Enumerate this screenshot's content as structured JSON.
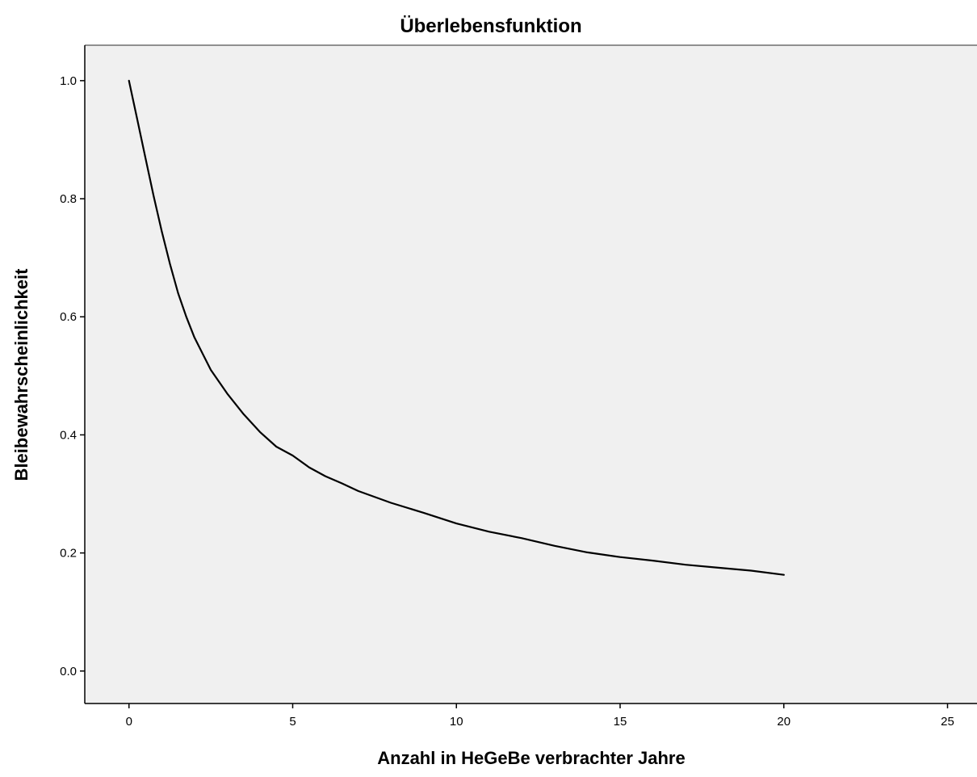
{
  "chart_data": {
    "type": "line",
    "title": "Überlebensfunktion",
    "xlabel": "Anzahl in HeGeBe verbrachter Jahre",
    "ylabel": "Bleibewahrscheinlichkeit",
    "xlim": [
      -1.35,
      25.9
    ],
    "ylim": [
      -0.055,
      1.06
    ],
    "xticks": [
      0,
      5,
      10,
      15,
      20,
      25
    ],
    "yticks": [
      0.0,
      0.2,
      0.4,
      0.6,
      0.8,
      1.0
    ],
    "xtick_labels": [
      "0",
      "5",
      "10",
      "15",
      "20",
      "25"
    ],
    "ytick_labels": [
      "0.0",
      "0.2",
      "0.4",
      "0.6",
      "0.8",
      "1.0"
    ],
    "grid": false,
    "colors": {
      "plot_background": "#f0f0f0",
      "line": "#000000"
    },
    "series": [
      {
        "x": [
          0,
          0.25,
          0.5,
          0.75,
          1,
          1.25,
          1.5,
          1.75,
          2,
          2.5,
          3,
          3.5,
          4,
          4.5,
          5,
          5.5,
          6,
          6.5,
          7,
          8,
          9,
          10,
          11,
          12,
          13,
          14,
          15,
          16,
          17,
          18,
          19,
          20
        ],
        "y": [
          1.0,
          0.935,
          0.87,
          0.805,
          0.745,
          0.69,
          0.64,
          0.6,
          0.565,
          0.51,
          0.47,
          0.435,
          0.405,
          0.38,
          0.365,
          0.345,
          0.33,
          0.318,
          0.305,
          0.285,
          0.268,
          0.25,
          0.236,
          0.225,
          0.212,
          0.201,
          0.193,
          0.187,
          0.18,
          0.175,
          0.17,
          0.163
        ]
      }
    ]
  }
}
